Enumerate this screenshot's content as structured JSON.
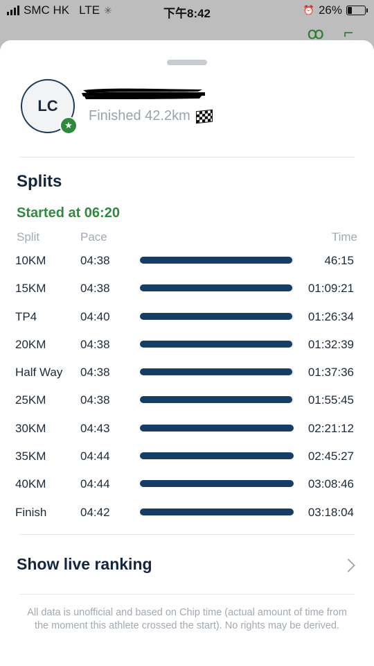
{
  "status_bar": {
    "carrier": "SMC HK",
    "network": "LTE",
    "time": "下午8:42",
    "battery_percent": "26%",
    "battery_level": 0.26
  },
  "athlete": {
    "initials": "LC",
    "finished_text": "Finished 42.2km"
  },
  "splits": {
    "title": "Splits",
    "started_text": "Started at 06:20",
    "headers": {
      "split": "Split",
      "pace": "Pace",
      "time": "Time"
    },
    "rows": [
      {
        "split": "10KM",
        "pace": "04:38",
        "time": "46:15",
        "bar": 0.99
      },
      {
        "split": "15KM",
        "pace": "04:38",
        "time": "01:09:21",
        "bar": 0.99
      },
      {
        "split": "TP4",
        "pace": "04:40",
        "time": "01:26:34",
        "bar": 0.99
      },
      {
        "split": "20KM",
        "pace": "04:38",
        "time": "01:32:39",
        "bar": 0.99
      },
      {
        "split": "Half Way",
        "pace": "04:38",
        "time": "01:37:36",
        "bar": 0.99
      },
      {
        "split": "25KM",
        "pace": "04:38",
        "time": "01:55:45",
        "bar": 0.99
      },
      {
        "split": "30KM",
        "pace": "04:43",
        "time": "02:21:12",
        "bar": 1.0
      },
      {
        "split": "35KM",
        "pace": "04:44",
        "time": "02:45:27",
        "bar": 1.0
      },
      {
        "split": "40KM",
        "pace": "04:44",
        "time": "03:08:46",
        "bar": 1.0
      },
      {
        "split": "Finish",
        "pace": "04:42",
        "time": "03:18:04",
        "bar": 1.0
      }
    ]
  },
  "ranking": {
    "label": "Show live ranking"
  },
  "disclaimer": "All data is unofficial and based on Chip time (actual amount of time from the moment this athlete crossed the start). No rights may be derived.",
  "colors": {
    "accent_green": "#2e8b3d",
    "bar_navy": "#163d66",
    "title_navy": "#13263f"
  },
  "icons": [
    "signal-icon",
    "activity-icon",
    "alarm-icon",
    "battery-icon",
    "star-badge-icon",
    "checkered-flag-icon",
    "chevron-right-icon"
  ]
}
